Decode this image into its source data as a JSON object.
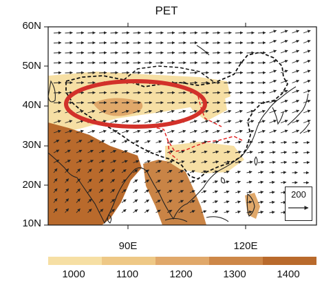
{
  "title": "PET",
  "y_axis": {
    "ticks": [
      "60N",
      "50N",
      "40N",
      "30N",
      "20N",
      "10N"
    ]
  },
  "x_axis": {
    "ticks": [
      "90E",
      "120E"
    ]
  },
  "colorbar": {
    "labels": [
      "1000",
      "1100",
      "1200",
      "1300",
      "1400"
    ],
    "colors": [
      "#f6dfa4",
      "#eec886",
      "#e0a86a",
      "#cd8748",
      "#b96a2c"
    ]
  },
  "vector_reference": {
    "label": "200"
  },
  "colors": {
    "shade_low": "#f6dfa4",
    "shade_mid": "#e0a86a",
    "shade_high": "#b96a2c",
    "highlight_ellipse": "#d2312a",
    "border_dashed_red": "#e02020",
    "border_dashed_black": "#111111"
  }
}
